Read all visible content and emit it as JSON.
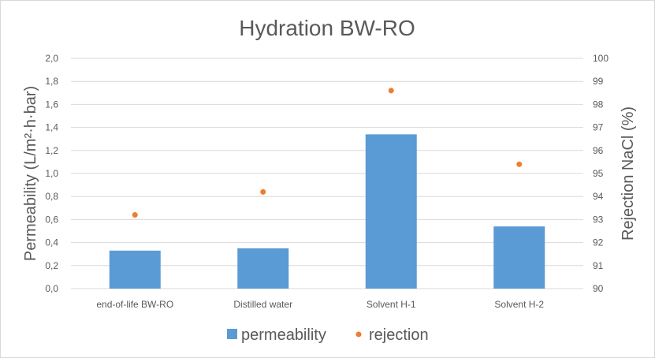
{
  "chart_data": {
    "type": "bar",
    "title": "Hydration BW-RO",
    "categories": [
      "end-of-life BW-RO",
      "Distilled water",
      "Solvent H-1",
      "Solvent H-2"
    ],
    "series": [
      {
        "name": "permeability",
        "kind": "bar",
        "axis": "left",
        "color": "#5b9bd5",
        "values": [
          0.33,
          0.35,
          1.34,
          0.54
        ]
      },
      {
        "name": "rejection",
        "kind": "scatter",
        "axis": "right",
        "color": "#ed7d31",
        "values": [
          93.2,
          94.2,
          98.6,
          95.4
        ]
      }
    ],
    "ylabel": "Permeability (L/m²·h·bar)",
    "y2label": "Rejection NaCl (%)",
    "ylim": [
      0,
      2.0
    ],
    "y2lim": [
      90,
      100
    ],
    "yticks": [
      "0,0",
      "0,2",
      "0,4",
      "0,6",
      "0,8",
      "1,0",
      "1,2",
      "1,4",
      "1,6",
      "1,8",
      "2,0"
    ],
    "y2ticks": [
      "90",
      "91",
      "92",
      "93",
      "94",
      "95",
      "96",
      "97",
      "98",
      "99",
      "100"
    ],
    "grid": true,
    "legend": "bottom"
  }
}
